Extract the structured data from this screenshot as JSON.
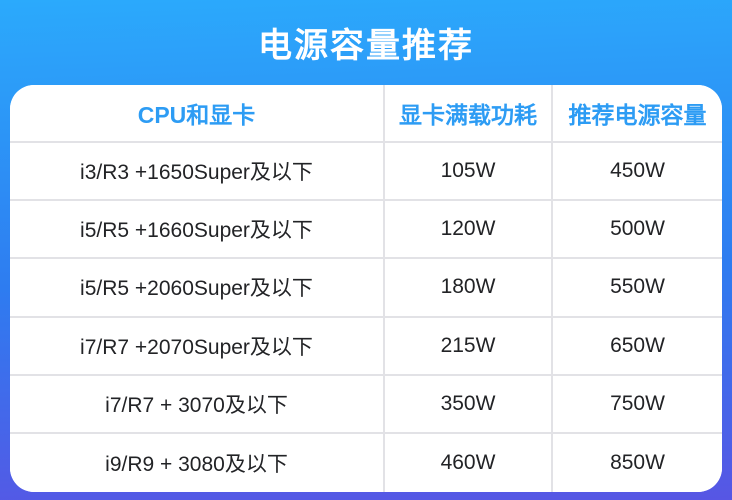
{
  "title": "电源容量推荐",
  "colors": {
    "background_top": "#2BAAFC",
    "background_mid": "#2E7CF0",
    "background_bottom": "#5756E4",
    "header_text": "#2D9CF4",
    "body_text": "#222326",
    "card_background": "#ffffff",
    "divider": "#E2E2E6"
  },
  "table": {
    "columns": [
      "CPU和显卡",
      "显卡满载功耗",
      "推荐电源容量"
    ],
    "rows": [
      [
        "i3/R3 +1650Super及以下",
        "105W",
        "450W"
      ],
      [
        "i5/R5 +1660Super及以下",
        "120W",
        "500W"
      ],
      [
        "i5/R5 +2060Super及以下",
        "180W",
        "550W"
      ],
      [
        "i7/R7 +2070Super及以下",
        "215W",
        "650W"
      ],
      [
        "i7/R7 + 3070及以下",
        "350W",
        "750W"
      ],
      [
        "i9/R9 + 3080及以下",
        "460W",
        "850W"
      ]
    ]
  }
}
